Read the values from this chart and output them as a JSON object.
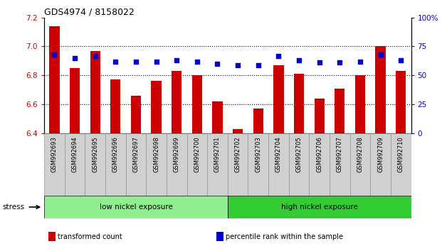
{
  "title": "GDS4974 / 8158022",
  "samples": [
    "GSM992693",
    "GSM992694",
    "GSM992695",
    "GSM992696",
    "GSM992697",
    "GSM992698",
    "GSM992699",
    "GSM992700",
    "GSM992701",
    "GSM992702",
    "GSM992703",
    "GSM992704",
    "GSM992705",
    "GSM992706",
    "GSM992707",
    "GSM992708",
    "GSM992709",
    "GSM992710"
  ],
  "bar_values": [
    7.14,
    6.85,
    6.97,
    6.77,
    6.66,
    6.76,
    6.83,
    6.8,
    6.62,
    6.43,
    6.57,
    6.87,
    6.81,
    6.64,
    6.71,
    6.8,
    7.0,
    6.83
  ],
  "percentile_values": [
    68,
    65,
    67,
    62,
    62,
    62,
    63,
    62,
    60,
    59,
    59,
    67,
    63,
    61,
    61,
    62,
    68,
    63
  ],
  "bar_color": "#cc0000",
  "dot_color": "#0000cc",
  "ylim_left": [
    6.4,
    7.2
  ],
  "ylim_right": [
    0,
    100
  ],
  "yticks_left": [
    6.4,
    6.6,
    6.8,
    7.0,
    7.2
  ],
  "yticks_right": [
    0,
    25,
    50,
    75,
    100
  ],
  "ytick_labels_right": [
    "0",
    "25",
    "50",
    "75",
    "100%"
  ],
  "groups": [
    {
      "label": "low nickel exposure",
      "start": 0,
      "end": 9,
      "color": "#90ee90"
    },
    {
      "label": "high nickel exposure",
      "start": 9,
      "end": 18,
      "color": "#32cd32"
    }
  ],
  "stress_label": "stress",
  "legend": [
    {
      "label": "transformed count",
      "color": "#cc0000"
    },
    {
      "label": "percentile rank within the sample",
      "color": "#0000cc"
    }
  ],
  "tick_label_color_left": "#cc0000",
  "tick_label_color_right": "#0000cc",
  "bar_width": 0.5,
  "gridlines": [
    6.6,
    6.8,
    7.0
  ]
}
